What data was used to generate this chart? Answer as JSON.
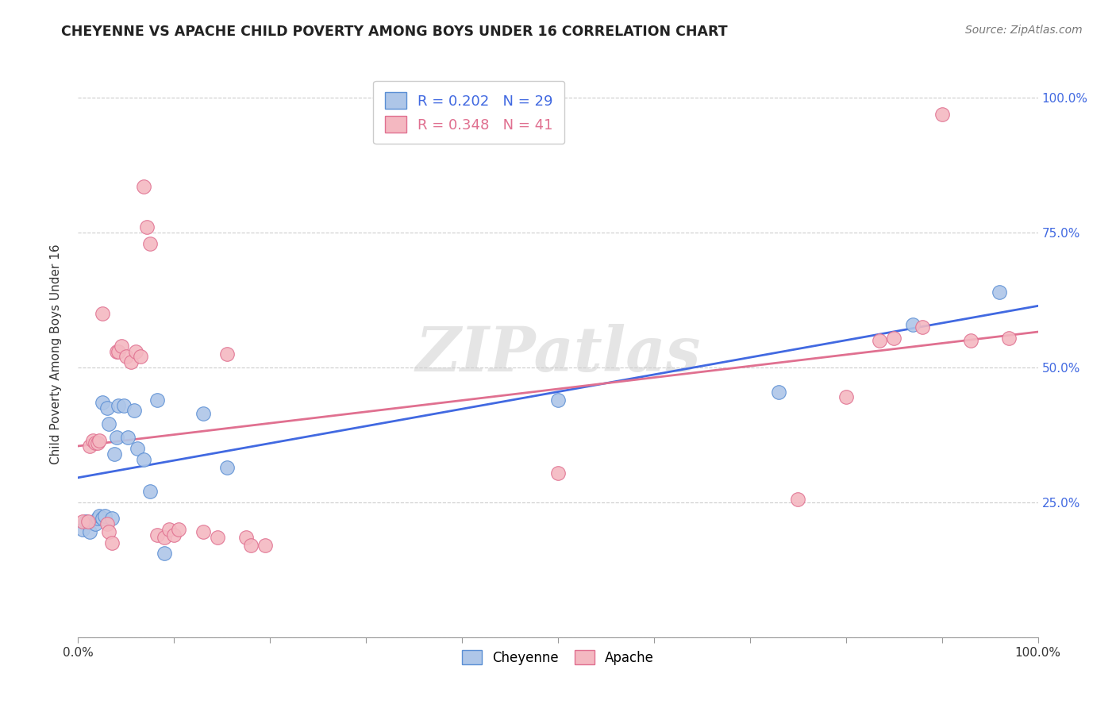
{
  "title": "CHEYENNE VS APACHE CHILD POVERTY AMONG BOYS UNDER 16 CORRELATION CHART",
  "source": "Source: ZipAtlas.com",
  "ylabel": "Child Poverty Among Boys Under 16",
  "cheyenne_color": "#aec6e8",
  "apache_color": "#f4b8c1",
  "cheyenne_edge_color": "#5b8fd4",
  "apache_edge_color": "#e07090",
  "cheyenne_line_color": "#4169e1",
  "apache_line_color": "#e07090",
  "cheyenne_R": 0.202,
  "cheyenne_N": 29,
  "apache_R": 0.348,
  "apache_N": 41,
  "watermark": "ZIPatlas",
  "cheyenne_x": [
    0.005,
    0.008,
    0.012,
    0.018,
    0.02,
    0.022,
    0.025,
    0.025,
    0.028,
    0.03,
    0.032,
    0.035,
    0.038,
    0.04,
    0.042,
    0.048,
    0.052,
    0.058,
    0.062,
    0.068,
    0.075,
    0.082,
    0.09,
    0.13,
    0.155,
    0.5,
    0.73,
    0.87,
    0.96
  ],
  "cheyenne_y": [
    0.2,
    0.215,
    0.195,
    0.21,
    0.22,
    0.225,
    0.22,
    0.435,
    0.225,
    0.425,
    0.395,
    0.22,
    0.34,
    0.37,
    0.43,
    0.43,
    0.37,
    0.42,
    0.35,
    0.33,
    0.27,
    0.44,
    0.155,
    0.415,
    0.315,
    0.44,
    0.455,
    0.58,
    0.64
  ],
  "apache_x": [
    0.005,
    0.01,
    0.012,
    0.015,
    0.018,
    0.02,
    0.022,
    0.025,
    0.03,
    0.032,
    0.035,
    0.04,
    0.042,
    0.045,
    0.05,
    0.055,
    0.06,
    0.065,
    0.068,
    0.072,
    0.075,
    0.082,
    0.09,
    0.095,
    0.1,
    0.105,
    0.13,
    0.145,
    0.155,
    0.175,
    0.18,
    0.195,
    0.5,
    0.75,
    0.8,
    0.835,
    0.85,
    0.88,
    0.9,
    0.93,
    0.97
  ],
  "apache_y": [
    0.215,
    0.215,
    0.355,
    0.365,
    0.36,
    0.36,
    0.365,
    0.6,
    0.21,
    0.195,
    0.175,
    0.53,
    0.53,
    0.54,
    0.52,
    0.51,
    0.53,
    0.52,
    0.835,
    0.76,
    0.73,
    0.19,
    0.185,
    0.2,
    0.19,
    0.2,
    0.195,
    0.185,
    0.525,
    0.185,
    0.17,
    0.17,
    0.305,
    0.255,
    0.445,
    0.55,
    0.555,
    0.575,
    0.97,
    0.55,
    0.555
  ],
  "xlim": [
    0.0,
    1.0
  ],
  "ylim": [
    0.0,
    1.05
  ],
  "background_color": "#ffffff",
  "grid_color": "#cccccc",
  "ytick_right_color": "#4169e1"
}
